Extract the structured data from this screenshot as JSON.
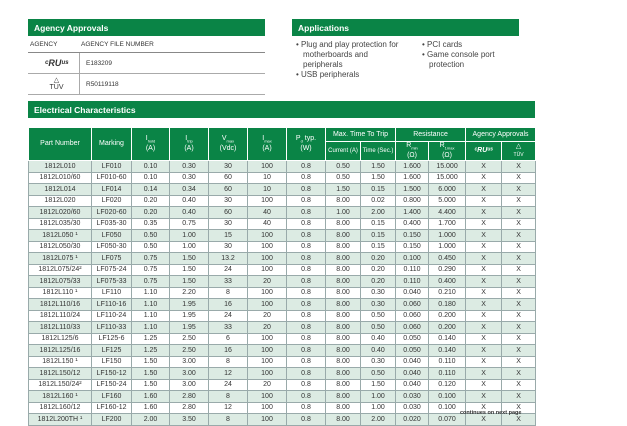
{
  "agency_approvals": {
    "title": "Agency Approvals",
    "col_agency": "AGENCY",
    "col_file": "AGENCY FILE NUMBER",
    "rows": [
      {
        "agency_icon": "ul-mark-icon",
        "file": "E183209"
      },
      {
        "agency_icon": "tuv-mark-icon",
        "file": "R50119118"
      }
    ]
  },
  "applications": {
    "title": "Applications",
    "col1": [
      "Plug and play protection for motherboards and peripherals",
      "USB peripherals"
    ],
    "col2": [
      "PCI cards",
      "Game console port protection"
    ]
  },
  "electrical": {
    "title": "Electrical Characteristics",
    "headers": {
      "part": "Part Number",
      "marking": "Marking",
      "ihold": "I",
      "ihold_sub": "hold",
      "itrip": "I",
      "itrip_sub": "trip",
      "vmax": "V",
      "vmax_sub": "max",
      "imax": "I",
      "imax_sub": "max",
      "pd": "P",
      "pd_sub": "d",
      "pd_suffix": " typ.",
      "unit_a": "(A)",
      "unit_vdc": "(Vdc)",
      "unit_w": "(W)",
      "trip": "Max. Time To Trip",
      "current": "Current (A)",
      "time": "Time (Sec.)",
      "resistance": "Resistance",
      "rmin": "R",
      "rmin_sub": "min",
      "r1max": "R",
      "r1max_sub": "1max",
      "ohm": "(Ω)",
      "agency": "Agency Approvals",
      "tuv": "TÜV"
    },
    "rows": [
      [
        "1812L010",
        "LF010",
        "0.10",
        "0.30",
        "30",
        "100",
        "0.8",
        "0.50",
        "1.50",
        "1.600",
        "15.000",
        "X",
        "X"
      ],
      [
        "1812L010/60",
        "LF010-60",
        "0.10",
        "0.30",
        "60",
        "10",
        "0.8",
        "0.50",
        "1.50",
        "1.600",
        "15.000",
        "X",
        "X"
      ],
      [
        "1812L014",
        "LF014",
        "0.14",
        "0.34",
        "60",
        "10",
        "0.8",
        "1.50",
        "0.15",
        "1.500",
        "6.000",
        "X",
        "X"
      ],
      [
        "1812L020",
        "LF020",
        "0.20",
        "0.40",
        "30",
        "100",
        "0.8",
        "8.00",
        "0.02",
        "0.800",
        "5.000",
        "X",
        "X"
      ],
      [
        "1812L020/60",
        "LF020-60",
        "0.20",
        "0.40",
        "60",
        "40",
        "0.8",
        "1.00",
        "2.00",
        "1.400",
        "4.400",
        "X",
        "X"
      ],
      [
        "1812L035/30",
        "LF035-30",
        "0.35",
        "0.75",
        "30",
        "40",
        "0.8",
        "8.00",
        "0.15",
        "0.400",
        "1.700",
        "X",
        "X"
      ],
      [
        "1812L050 ¹",
        "LF050",
        "0.50",
        "1.00",
        "15",
        "100",
        "0.8",
        "8.00",
        "0.15",
        "0.150",
        "1.000",
        "X",
        "X"
      ],
      [
        "1812L050/30",
        "LF050-30",
        "0.50",
        "1.00",
        "30",
        "100",
        "0.8",
        "8.00",
        "0.15",
        "0.150",
        "1.000",
        "X",
        "X"
      ],
      [
        "1812L075 ¹",
        "LF075",
        "0.75",
        "1.50",
        "13.2",
        "100",
        "0.8",
        "8.00",
        "0.20",
        "0.100",
        "0.450",
        "X",
        "X"
      ],
      [
        "1812L075/24²",
        "LF075-24",
        "0.75",
        "1.50",
        "24",
        "100",
        "0.8",
        "8.00",
        "0.20",
        "0.110",
        "0.290",
        "X",
        "X"
      ],
      [
        "1812L075/33",
        "LF075-33",
        "0.75",
        "1.50",
        "33",
        "20",
        "0.8",
        "8.00",
        "0.20",
        "0.110",
        "0.400",
        "X",
        "X"
      ],
      [
        "1812L110 ¹",
        "LF110",
        "1.10",
        "2.20",
        "8",
        "100",
        "0.8",
        "8.00",
        "0.30",
        "0.040",
        "0.210",
        "X",
        "X"
      ],
      [
        "1812L110/16",
        "LF110-16",
        "1.10",
        "1.95",
        "16",
        "100",
        "0.8",
        "8.00",
        "0.30",
        "0.060",
        "0.180",
        "X",
        "X"
      ],
      [
        "1812L110/24",
        "LF110-24",
        "1.10",
        "1.95",
        "24",
        "20",
        "0.8",
        "8.00",
        "0.50",
        "0.060",
        "0.200",
        "X",
        "X"
      ],
      [
        "1812L110/33",
        "LF110-33",
        "1.10",
        "1.95",
        "33",
        "20",
        "0.8",
        "8.00",
        "0.50",
        "0.060",
        "0.200",
        "X",
        "X"
      ],
      [
        "1812L125/6",
        "LF125-6",
        "1.25",
        "2.50",
        "6",
        "100",
        "0.8",
        "8.00",
        "0.40",
        "0.050",
        "0.140",
        "X",
        "X"
      ],
      [
        "1812L125/16",
        "LF125",
        "1.25",
        "2.50",
        "16",
        "100",
        "0.8",
        "8.00",
        "0.40",
        "0.050",
        "0.140",
        "X",
        "X"
      ],
      [
        "1812L150 ¹",
        "LF150",
        "1.50",
        "3.00",
        "8",
        "100",
        "0.8",
        "8.00",
        "0.30",
        "0.040",
        "0.110",
        "X",
        "X"
      ],
      [
        "1812L150/12",
        "LF150-12",
        "1.50",
        "3.00",
        "12",
        "100",
        "0.8",
        "8.00",
        "0.50",
        "0.040",
        "0.110",
        "X",
        "X"
      ],
      [
        "1812L150/24²",
        "LF150-24",
        "1.50",
        "3.00",
        "24",
        "20",
        "0.8",
        "8.00",
        "1.50",
        "0.040",
        "0.120",
        "X",
        "X"
      ],
      [
        "1812L160 ¹",
        "LF160",
        "1.60",
        "2.80",
        "8",
        "100",
        "0.8",
        "8.00",
        "1.00",
        "0.030",
        "0.100",
        "X",
        "X"
      ],
      [
        "1812L160/12",
        "LF160-12",
        "1.60",
        "2.80",
        "12",
        "100",
        "0.8",
        "8.00",
        "1.00",
        "0.030",
        "0.100",
        "X",
        "X"
      ],
      [
        "1812L200TH ¹",
        "LF200",
        "2.00",
        "3.50",
        "8",
        "100",
        "0.8",
        "8.00",
        "2.00",
        "0.020",
        "0.070",
        "X",
        "X"
      ]
    ]
  },
  "footer": "continues on next page",
  "colors": {
    "brand_green": "#0a8446",
    "stripe": "#dcebe3"
  }
}
